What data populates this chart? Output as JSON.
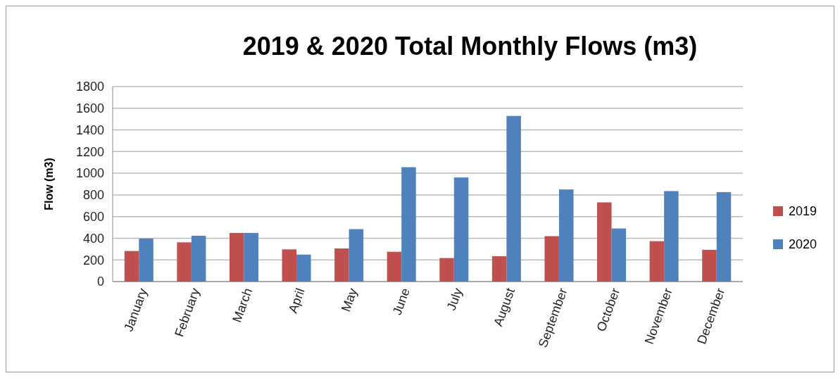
{
  "chart_data": {
    "type": "bar",
    "title": "2019 & 2020 Total Monthly Flows (m3)",
    "ylabel": "Flow (m3)",
    "categories": [
      "January",
      "February",
      "March",
      "April",
      "May",
      "June",
      "July",
      "August",
      "September",
      "October",
      "November",
      "December"
    ],
    "series": [
      {
        "name": "2019",
        "color": "#c0504d",
        "values": [
          282,
          362,
          449,
          297,
          306,
          275,
          217,
          234,
          419,
          731,
          373,
          293
        ]
      },
      {
        "name": "2020",
        "color": "#4f81bd",
        "values": [
          397,
          423,
          449,
          249,
          484,
          1056,
          961,
          1529,
          850,
          490,
          835,
          826
        ]
      }
    ],
    "ylim": [
      0,
      1800
    ],
    "yticks": [
      0,
      200,
      400,
      600,
      800,
      1000,
      1200,
      1400,
      1600,
      1800
    ],
    "grid": "y",
    "legend": "right"
  }
}
